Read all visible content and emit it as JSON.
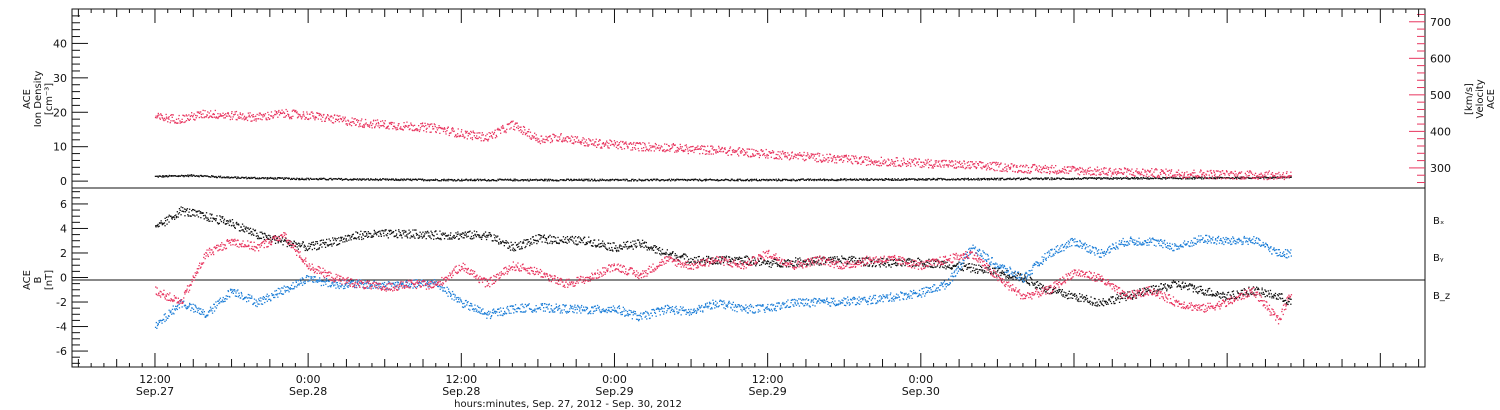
{
  "colors": {
    "black": "#111111",
    "pink": "#e8355f",
    "blue": "#1e7fd8"
  },
  "chart_data": [
    {
      "type": "scatter",
      "ylabel_left": [
        "ACE",
        "Ion Density",
        "[cm⁻³]"
      ],
      "ylabel_right": [
        "ACE",
        "Velocity",
        "[km/s]"
      ],
      "left_axis": {
        "ylim": [
          -2,
          50
        ],
        "ticks": [
          0,
          10,
          20,
          30,
          40
        ]
      },
      "right_axis": {
        "ylim": [
          245,
          735
        ],
        "ticks": [
          300,
          400,
          500,
          600,
          700
        ]
      },
      "series": [
        {
          "color": "#111111",
          "axis": "left",
          "x": [
            0,
            3,
            6,
            9,
            12,
            15,
            18,
            24,
            30,
            36,
            42,
            48,
            54,
            60,
            66,
            72,
            78,
            84,
            89
          ],
          "y": [
            1.5,
            1.8,
            1.2,
            1.0,
            0.8,
            0.7,
            0.6,
            0.5,
            0.5,
            0.5,
            0.5,
            0.5,
            0.6,
            0.7,
            0.8,
            0.9,
            1.0,
            1.1,
            1.3
          ]
        },
        {
          "color": "#e8355f",
          "axis": "right",
          "x": [
            0,
            2,
            4,
            6,
            8,
            10,
            12,
            14,
            16,
            18,
            20,
            22,
            24,
            26,
            28,
            30,
            32,
            34,
            36,
            38,
            40,
            42,
            44,
            46,
            48,
            50,
            52,
            54,
            56,
            58,
            60,
            62,
            64,
            66,
            68,
            70,
            72,
            74,
            76,
            78,
            80,
            82,
            84,
            86,
            88,
            89
          ],
          "y": [
            440,
            435,
            450,
            445,
            440,
            450,
            445,
            435,
            425,
            420,
            415,
            410,
            395,
            385,
            420,
            380,
            385,
            370,
            365,
            360,
            358,
            352,
            350,
            345,
            340,
            335,
            330,
            325,
            320,
            318,
            315,
            312,
            308,
            305,
            300,
            298,
            295,
            292,
            290,
            288,
            286,
            285,
            283,
            282,
            281,
            282
          ]
        }
      ]
    },
    {
      "type": "scatter",
      "ylabel": [
        "ACE",
        "B",
        "[nT]"
      ],
      "ylim": [
        -7.3,
        7.3
      ],
      "ticks": [
        -6,
        -4,
        -2,
        0,
        2,
        4,
        6
      ],
      "legend": [
        "Bₓ",
        "Bᵧ",
        "B_z"
      ],
      "series": [
        {
          "name": "Bₓ",
          "color": "#111111",
          "x": [
            0,
            2,
            4,
            6,
            8,
            10,
            12,
            14,
            16,
            18,
            20,
            22,
            24,
            26,
            28,
            30,
            32,
            34,
            36,
            38,
            40,
            42,
            44,
            46,
            48,
            50,
            52,
            54,
            56,
            58,
            60,
            62,
            64,
            66,
            68,
            70,
            72,
            74,
            76,
            78,
            80,
            82,
            84,
            86,
            88,
            89
          ],
          "y": [
            4,
            5.5,
            5,
            4.5,
            3.5,
            3,
            2.5,
            3,
            3.5,
            3.6,
            3.6,
            3.5,
            3.5,
            3.5,
            2.5,
            3.2,
            3.1,
            3,
            2.5,
            2.8,
            2,
            1.5,
            1.4,
            1.5,
            1.2,
            1.3,
            1.4,
            1.5,
            1.3,
            1.2,
            1.3,
            1.1,
            0.8,
            0.5,
            0,
            -1,
            -1.5,
            -2,
            -1.5,
            -1,
            -0.5,
            -1,
            -1.5,
            -1,
            -1.5,
            -2
          ]
        },
        {
          "name": "Bᵧ",
          "color": "#1e7fd8",
          "x": [
            0,
            2,
            4,
            6,
            8,
            10,
            12,
            14,
            16,
            18,
            20,
            22,
            24,
            26,
            28,
            30,
            32,
            34,
            36,
            38,
            40,
            42,
            44,
            46,
            48,
            50,
            52,
            54,
            56,
            58,
            60,
            62,
            64,
            66,
            68,
            70,
            72,
            74,
            76,
            78,
            80,
            82,
            84,
            86,
            88,
            89
          ],
          "y": [
            -4,
            -2,
            -3,
            -1,
            -2,
            -1,
            0,
            -0.5,
            -0.5,
            -0.6,
            -0.5,
            -0.4,
            -2,
            -3,
            -2.5,
            -2.4,
            -2.5,
            -2.6,
            -2.5,
            -3.2,
            -2.5,
            -2.8,
            -2,
            -2.5,
            -2.5,
            -2,
            -2,
            -1.9,
            -1.8,
            -1.5,
            -1.2,
            -0.5,
            2.5,
            1,
            0,
            2,
            3,
            2,
            3,
            3,
            2.5,
            3.2,
            3,
            3.1,
            2,
            2
          ]
        },
        {
          "name": "B_z",
          "color": "#e8355f",
          "x": [
            0,
            2,
            4,
            6,
            8,
            10,
            12,
            14,
            16,
            18,
            20,
            22,
            24,
            26,
            28,
            30,
            32,
            34,
            36,
            38,
            40,
            42,
            44,
            46,
            48,
            50,
            52,
            54,
            56,
            58,
            60,
            62,
            64,
            66,
            68,
            70,
            72,
            74,
            76,
            78,
            80,
            82,
            84,
            86,
            88,
            89
          ],
          "y": [
            -1,
            -2,
            2,
            3,
            2.5,
            3.5,
            1,
            0,
            -0.5,
            -0.8,
            -0.5,
            -0.6,
            1,
            -0.5,
            1,
            0.5,
            -0.5,
            0,
            1,
            0.2,
            1.5,
            1,
            1.5,
            1,
            2,
            1,
            1.5,
            1,
            1.5,
            1.5,
            1,
            1.5,
            2,
            0,
            -1.5,
            -1,
            0.5,
            0,
            -1.5,
            -1,
            -2,
            -2.5,
            -2,
            -1,
            -3.5,
            -1
          ]
        }
      ]
    }
  ],
  "x_axis": {
    "range_hours": [
      -6.5,
      99.5
    ],
    "ticks": [
      {
        "x": 0,
        "line1": "12:00",
        "line2": "Sep.27"
      },
      {
        "x": 12,
        "line1": "0:00",
        "line2": "Sep.28"
      },
      {
        "x": 24,
        "line1": "12:00",
        "line2": "Sep.28"
      },
      {
        "x": 36,
        "line1": "0:00",
        "line2": "Sep.29"
      },
      {
        "x": 48,
        "line1": "12:00",
        "line2": "Sep.29"
      },
      {
        "x": 60,
        "line1": "0:00",
        "line2": "Sep.30"
      }
    ],
    "title": "hours:minutes, Sep. 27, 2012 - Sep. 30, 2012"
  }
}
